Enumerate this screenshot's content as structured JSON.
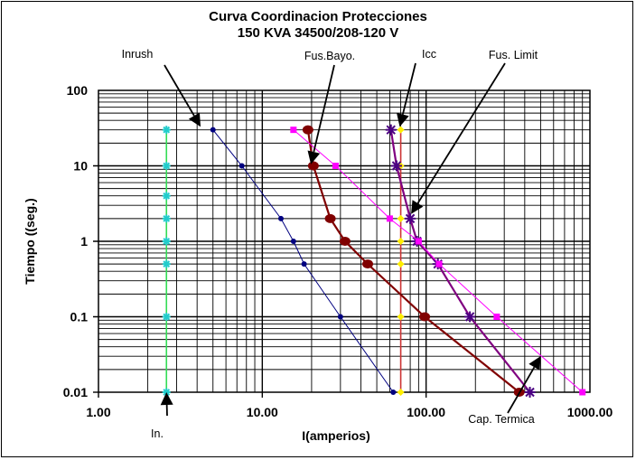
{
  "chart_data": {
    "type": "line",
    "title": "Curva Coordinacion Protecciones",
    "subtitle": "150 KVA 34500/208-120 V",
    "xlabel": "I(amperios)",
    "ylabel": "Tiempo ((seg.)",
    "xscale": "log",
    "yscale": "log",
    "xlim": [
      1,
      1000
    ],
    "ylim": [
      0.01,
      100
    ],
    "xticks": [
      "1.00",
      "10.00",
      "100.00",
      "1000.00"
    ],
    "yticks": [
      "100",
      "10",
      "1",
      "0.1",
      "0.01"
    ],
    "grid": true,
    "series": [
      {
        "key": "in",
        "color": "#33dd55",
        "marker": "star",
        "markerColor": "#22cccc",
        "points": [
          [
            2.6,
            30
          ],
          [
            2.6,
            10
          ],
          [
            2.6,
            4
          ],
          [
            2.6,
            2
          ],
          [
            2.6,
            1
          ],
          [
            2.6,
            0.5
          ],
          [
            2.6,
            0.1
          ],
          [
            2.6,
            0.01
          ]
        ]
      },
      {
        "key": "inrush",
        "color": "#000080",
        "marker": "dot",
        "markerColor": "#000080",
        "points": [
          [
            5,
            30
          ],
          [
            7.5,
            10
          ],
          [
            13,
            2
          ],
          [
            15.5,
            1
          ],
          [
            18,
            0.5
          ],
          [
            30,
            0.1
          ],
          [
            63,
            0.01
          ]
        ]
      },
      {
        "key": "icc",
        "color": "#cc3333",
        "marker": "diamond",
        "markerColor": "#ffee00",
        "points": [
          [
            70,
            30
          ],
          [
            70,
            10
          ],
          [
            70,
            2
          ],
          [
            70,
            1
          ],
          [
            70,
            0.5
          ],
          [
            70,
            0.1
          ],
          [
            70,
            0.01
          ]
        ]
      },
      {
        "key": "fus_bayo",
        "color": "#800000",
        "marker": "bigdot",
        "markerColor": "#800000",
        "points": [
          [
            19,
            30
          ],
          [
            20.5,
            10
          ],
          [
            26,
            2
          ],
          [
            32,
            1
          ],
          [
            44,
            0.5
          ],
          [
            98,
            0.1
          ],
          [
            370,
            0.01
          ]
        ]
      },
      {
        "key": "fus_limit",
        "color": "#800080",
        "marker": "asterisk",
        "markerColor": "#4b0082",
        "points": [
          [
            61,
            30
          ],
          [
            66,
            10
          ],
          [
            80,
            2
          ],
          [
            88,
            1
          ],
          [
            118,
            0.5
          ],
          [
            185,
            0.1
          ],
          [
            430,
            0.01
          ]
        ]
      },
      {
        "key": "cap_termica",
        "color": "#ff00ff",
        "marker": "square",
        "markerColor": "#ff00ff",
        "points": [
          [
            15.5,
            30
          ],
          [
            28,
            10
          ],
          [
            60,
            2
          ],
          [
            90,
            1
          ],
          [
            120,
            0.5
          ],
          [
            270,
            0.1
          ],
          [
            900,
            0.01
          ]
        ]
      }
    ],
    "annotations": [
      {
        "text": "Inrush",
        "arrowTo": [
          4.2,
          33
        ]
      },
      {
        "text": "Fus.Bayo.",
        "arrowTo": [
          19.8,
          10.5
        ]
      },
      {
        "text": "Icc",
        "arrowTo": [
          69,
          33
        ]
      },
      {
        "text": "Fus. Limit",
        "arrowTo": [
          81,
          2.3
        ]
      },
      {
        "text": "Cap. Termica",
        "arrowTo": [
          500,
          0.03
        ]
      },
      {
        "text": "In.",
        "arrowTo": [
          2.6,
          0.01
        ]
      }
    ]
  }
}
